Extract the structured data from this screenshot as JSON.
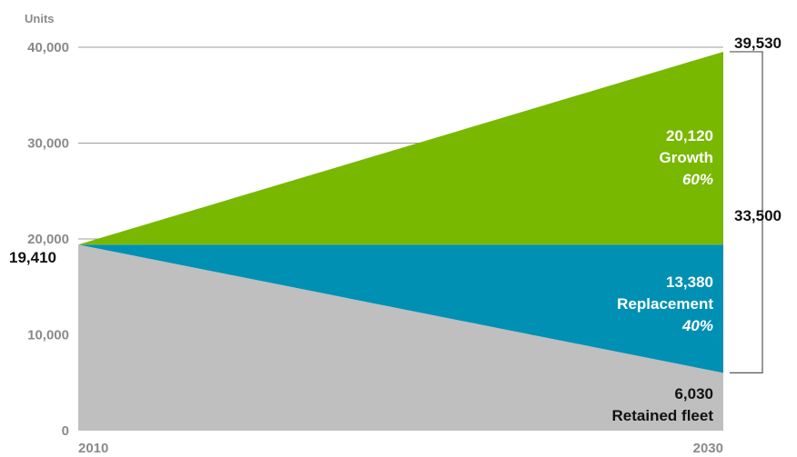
{
  "chart_data": {
    "type": "area",
    "ylabel": "Units",
    "x": [
      "2010",
      "2030"
    ],
    "ylim": [
      0,
      40000
    ],
    "y_ticks": [
      "0",
      "10,000",
      "20,000",
      "30,000",
      "40,000"
    ],
    "grid": true,
    "start_value": 19410,
    "start_value_label": "19,410",
    "end_total": 39530,
    "end_total_label": "39,530",
    "new_units": 33500,
    "new_units_label": "33,500",
    "series": [
      {
        "name": "Retained fleet",
        "values": [
          19410,
          6030
        ],
        "value_label": "6,030",
        "color": "#bfbfbf",
        "text_color": "#111111"
      },
      {
        "name": "Replacement",
        "values": [
          0,
          13380
        ],
        "value_label": "13,380",
        "percent_label": "40%",
        "color": "#0090b4",
        "text_color": "#ffffff"
      },
      {
        "name": "Growth",
        "values": [
          0,
          20120
        ],
        "value_label": "20,120",
        "percent_label": "60%",
        "color": "#78b800",
        "text_color": "#ffffff"
      }
    ]
  }
}
